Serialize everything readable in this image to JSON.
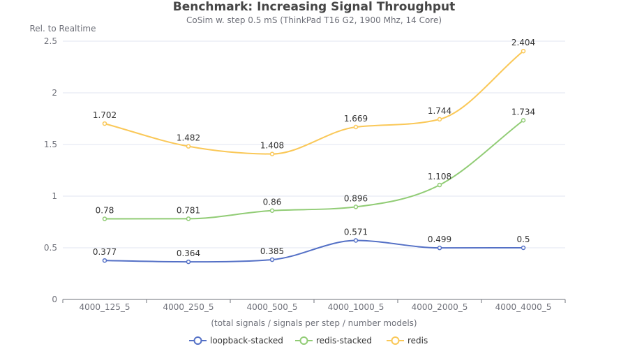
{
  "chart_data": {
    "type": "line",
    "title": "Benchmark: Increasing Signal Throughput",
    "subtitle": "CoSim w. step 0.5 mS (ThinkPad T16 G2, 1900 Mhz, 14 Core)",
    "ylabel": "Rel. to Realtime",
    "xlabel": "(total signals / signals per step / number models)",
    "categories": [
      "4000_125_5",
      "4000_250_5",
      "4000_500_5",
      "4000_1000_5",
      "4000_2000_5",
      "4000_4000_5"
    ],
    "ylim": [
      0,
      2.5
    ],
    "yticks": [
      0,
      0.5,
      1,
      1.5,
      2,
      2.5
    ],
    "ytick_labels": [
      "0",
      "0.5",
      "1",
      "1.5",
      "2",
      "2.5"
    ],
    "grid": true,
    "smooth": true,
    "legend_position": "bottom-center",
    "series": [
      {
        "name": "loopback-stacked",
        "color": "#5470c6",
        "values": [
          0.377,
          0.364,
          0.385,
          0.571,
          0.499,
          0.5
        ],
        "labels": [
          "0.377",
          "0.364",
          "0.385",
          "0.571",
          "0.499",
          "0.5"
        ]
      },
      {
        "name": "redis-stacked",
        "color": "#91cc75",
        "values": [
          0.78,
          0.781,
          0.86,
          0.896,
          1.108,
          1.734
        ],
        "labels": [
          "0.78",
          "0.781",
          "0.86",
          "0.896",
          "1.108",
          "1.734"
        ]
      },
      {
        "name": "redis",
        "color": "#fac858",
        "values": [
          1.702,
          1.482,
          1.408,
          1.669,
          1.744,
          2.404
        ],
        "labels": [
          "1.702",
          "1.482",
          "1.408",
          "1.669",
          "1.744",
          "2.404"
        ]
      }
    ]
  }
}
